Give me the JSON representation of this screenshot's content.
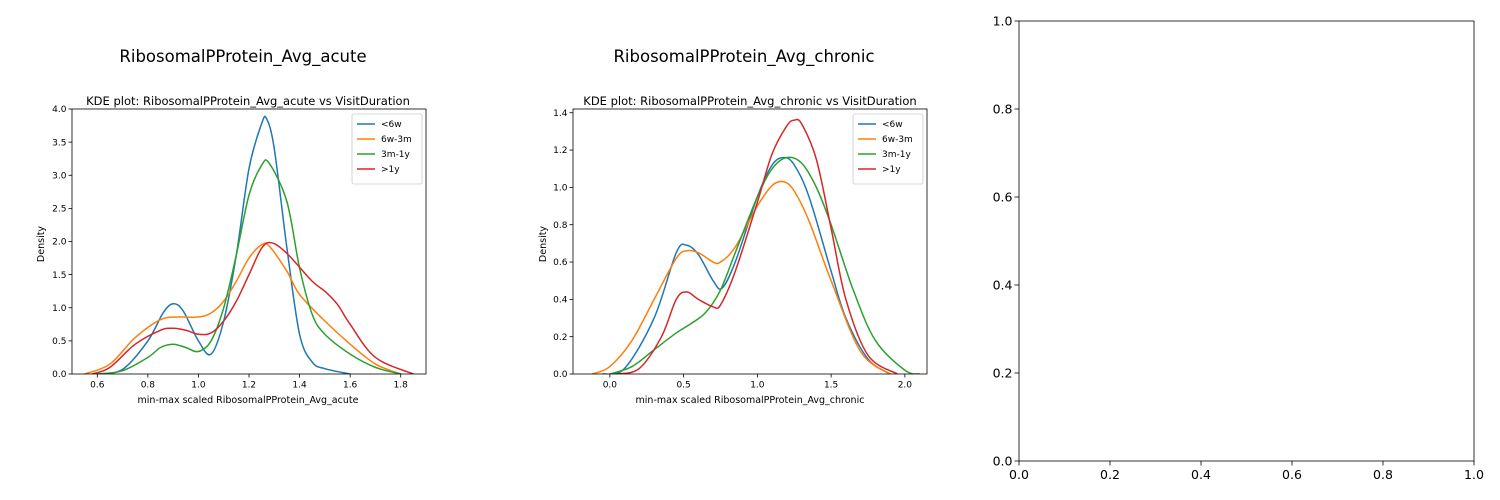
{
  "colors": {
    "series": [
      "#1f77b4",
      "#ff7f0e",
      "#2ca02c",
      "#d62728"
    ],
    "axis": "#000000",
    "background": "#ffffff"
  },
  "chart_data": [
    {
      "type": "line",
      "figure_title": "RibosomalPProtein_Avg_acute",
      "title": "KDE plot:  RibosomalPProtein_Avg_acute vs VisitDuration",
      "xlabel": "min-max scaled RibosomalPProtein_Avg_acute",
      "ylabel": "Density",
      "xlim": [
        0.5,
        1.9
      ],
      "ylim": [
        0,
        4.0
      ],
      "xticks": [
        0.6,
        0.8,
        1.0,
        1.2,
        1.4,
        1.6,
        1.8
      ],
      "xtick_labels": [
        "0.6",
        "0.8",
        "1.0",
        "1.2",
        "1.4",
        "1.6",
        "1.8"
      ],
      "yticks": [
        0,
        0.5,
        1.0,
        1.5,
        2.0,
        2.5,
        3.0,
        3.5,
        4.0
      ],
      "ytick_labels": [
        "0.0",
        "0.5",
        "1.0",
        "1.5",
        "2.0",
        "2.5",
        "3.0",
        "3.5",
        "4.0"
      ],
      "grid": false,
      "legend": "top-right",
      "series": [
        {
          "name": "<6w",
          "x": [
            0.6,
            0.7,
            0.8,
            0.86,
            0.9,
            0.94,
            1.0,
            1.05,
            1.1,
            1.15,
            1.2,
            1.25,
            1.27,
            1.3,
            1.35,
            1.4,
            1.45,
            1.5,
            1.6
          ],
          "y": [
            0.0,
            0.07,
            0.5,
            0.92,
            1.06,
            0.95,
            0.5,
            0.3,
            0.8,
            1.8,
            3.1,
            3.78,
            3.85,
            3.4,
            1.9,
            0.6,
            0.18,
            0.08,
            0.0
          ]
        },
        {
          "name": "6w-3m",
          "x": [
            0.55,
            0.65,
            0.75,
            0.85,
            0.92,
            1.0,
            1.05,
            1.1,
            1.15,
            1.2,
            1.25,
            1.28,
            1.35,
            1.4,
            1.5,
            1.6,
            1.7,
            1.8
          ],
          "y": [
            0.0,
            0.15,
            0.55,
            0.82,
            0.86,
            0.86,
            0.92,
            1.1,
            1.4,
            1.75,
            1.95,
            1.93,
            1.55,
            1.2,
            0.8,
            0.45,
            0.15,
            0.0
          ]
        },
        {
          "name": "3m-1y",
          "x": [
            0.6,
            0.7,
            0.8,
            0.85,
            0.9,
            0.95,
            1.0,
            1.05,
            1.1,
            1.15,
            1.2,
            1.25,
            1.28,
            1.35,
            1.4,
            1.45,
            1.5,
            1.6,
            1.7,
            1.8
          ],
          "y": [
            0.0,
            0.05,
            0.25,
            0.4,
            0.45,
            0.4,
            0.34,
            0.5,
            1.0,
            1.8,
            2.7,
            3.15,
            3.18,
            2.6,
            1.6,
            0.9,
            0.6,
            0.3,
            0.1,
            0.0
          ]
        },
        {
          "name": ">1y",
          "x": [
            0.58,
            0.65,
            0.75,
            0.85,
            0.9,
            0.95,
            1.0,
            1.05,
            1.1,
            1.15,
            1.2,
            1.25,
            1.29,
            1.35,
            1.45,
            1.5,
            1.55,
            1.6,
            1.7,
            1.85
          ],
          "y": [
            0.0,
            0.1,
            0.45,
            0.66,
            0.69,
            0.66,
            0.6,
            0.62,
            0.8,
            1.1,
            1.5,
            1.9,
            1.98,
            1.82,
            1.4,
            1.25,
            1.05,
            0.75,
            0.25,
            0.0
          ]
        }
      ]
    },
    {
      "type": "line",
      "figure_title": "RibosomalPProtein_Avg_chronic",
      "title": "KDE plot:  RibosomalPProtein_Avg_chronic vs VisitDuration",
      "xlabel": "min-max scaled RibosomalPProtein_Avg_chronic",
      "ylabel": "Density",
      "xlim": [
        -0.25,
        2.15
      ],
      "ylim": [
        0,
        1.42
      ],
      "xticks": [
        0.0,
        0.5,
        1.0,
        1.5,
        2.0
      ],
      "xtick_labels": [
        "0.0",
        "0.5",
        "1.0",
        "1.5",
        "2.0"
      ],
      "yticks": [
        0,
        0.2,
        0.4,
        0.6,
        0.8,
        1.0,
        1.2,
        1.4
      ],
      "ytick_labels": [
        "0.0",
        "0.2",
        "0.4",
        "0.6",
        "0.8",
        "1.0",
        "1.2",
        "1.4"
      ],
      "grid": false,
      "legend": "top-right",
      "series": [
        {
          "name": "<6w",
          "x": [
            -0.05,
            0.1,
            0.3,
            0.45,
            0.52,
            0.6,
            0.7,
            0.76,
            0.85,
            1.0,
            1.1,
            1.18,
            1.25,
            1.35,
            1.5,
            1.6,
            1.75,
            1.9
          ],
          "y": [
            0.0,
            0.03,
            0.3,
            0.65,
            0.69,
            0.64,
            0.5,
            0.46,
            0.6,
            0.95,
            1.12,
            1.16,
            1.12,
            0.95,
            0.55,
            0.3,
            0.08,
            0.0
          ]
        },
        {
          "name": "6w-3m",
          "x": [
            -0.12,
            0.0,
            0.15,
            0.3,
            0.45,
            0.52,
            0.6,
            0.7,
            0.75,
            0.85,
            1.0,
            1.1,
            1.18,
            1.25,
            1.35,
            1.5,
            1.7,
            1.9
          ],
          "y": [
            0.0,
            0.04,
            0.18,
            0.4,
            0.62,
            0.66,
            0.65,
            0.6,
            0.6,
            0.68,
            0.9,
            1.01,
            1.03,
            0.98,
            0.82,
            0.5,
            0.12,
            0.0
          ]
        },
        {
          "name": "3m-1y",
          "x": [
            0.0,
            0.15,
            0.3,
            0.45,
            0.55,
            0.65,
            0.75,
            0.85,
            1.0,
            1.1,
            1.2,
            1.3,
            1.4,
            1.5,
            1.65,
            1.8,
            2.0,
            2.1
          ],
          "y": [
            0.0,
            0.04,
            0.13,
            0.22,
            0.27,
            0.33,
            0.45,
            0.65,
            0.95,
            1.1,
            1.16,
            1.13,
            1.0,
            0.8,
            0.45,
            0.18,
            0.02,
            0.0
          ]
        },
        {
          "name": ">1y",
          "x": [
            0.05,
            0.2,
            0.35,
            0.45,
            0.52,
            0.6,
            0.7,
            0.75,
            0.85,
            1.0,
            1.1,
            1.2,
            1.25,
            1.3,
            1.4,
            1.5,
            1.6,
            1.75,
            1.95
          ],
          "y": [
            0.0,
            0.03,
            0.2,
            0.4,
            0.44,
            0.4,
            0.36,
            0.37,
            0.55,
            0.92,
            1.18,
            1.33,
            1.36,
            1.34,
            1.15,
            0.78,
            0.4,
            0.1,
            0.0
          ]
        }
      ]
    },
    {
      "type": "line",
      "title": "",
      "xlabel": "",
      "ylabel": "",
      "xlim": [
        0,
        1.0
      ],
      "ylim": [
        0,
        1.0
      ],
      "xticks": [
        0.0,
        0.2,
        0.4,
        0.6,
        0.8,
        1.0
      ],
      "xtick_labels": [
        "0.0",
        "0.2",
        "0.4",
        "0.6",
        "0.8",
        "1.0"
      ],
      "yticks": [
        0.0,
        0.2,
        0.4,
        0.6,
        0.8,
        1.0
      ],
      "ytick_labels": [
        "0.0",
        "0.2",
        "0.4",
        "0.6",
        "0.8",
        "1.0"
      ],
      "grid": false,
      "legend": "none",
      "series": []
    }
  ]
}
